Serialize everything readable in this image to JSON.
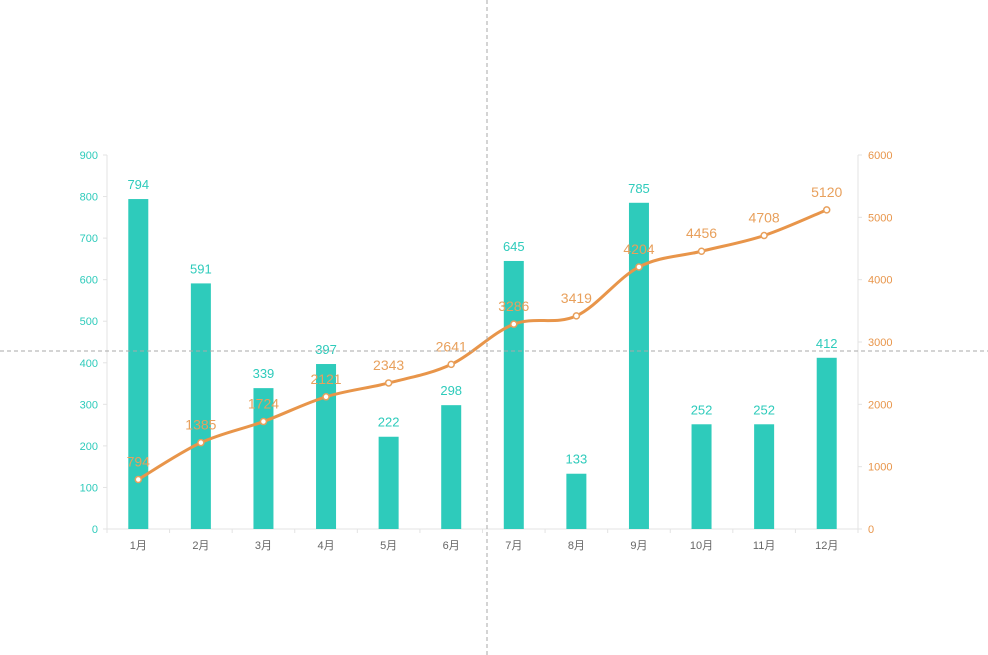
{
  "chart_data": {
    "type": "bar",
    "categories": [
      "1月",
      "2月",
      "3月",
      "4月",
      "5月",
      "6月",
      "7月",
      "8月",
      "9月",
      "10月",
      "11月",
      "12月"
    ],
    "series": [
      {
        "type": "bar",
        "axis": "left",
        "color": "#2ecbbb",
        "values": [
          794,
          591,
          339,
          397,
          222,
          298,
          645,
          133,
          785,
          252,
          252,
          412
        ]
      },
      {
        "type": "line",
        "axis": "right",
        "color": "#e8954a",
        "values": [
          794,
          1385,
          1724,
          2121,
          2343,
          2641,
          3286,
          3419,
          4204,
          4456,
          4708,
          5120
        ]
      }
    ],
    "y_left": {
      "min": 0,
      "max": 900,
      "ticks": [
        "0",
        "100",
        "200",
        "300",
        "400",
        "500",
        "600",
        "700",
        "800",
        "900"
      ],
      "color": "#2ecbbb"
    },
    "y_right": {
      "min": 0,
      "max": 6000,
      "ticks": [
        "0",
        "1000",
        "2000",
        "3000",
        "4000",
        "5000",
        "6000"
      ],
      "color": "#e8954a"
    },
    "title": "",
    "xlabel": "",
    "ylabel": "",
    "legend": "none",
    "grid": false
  }
}
